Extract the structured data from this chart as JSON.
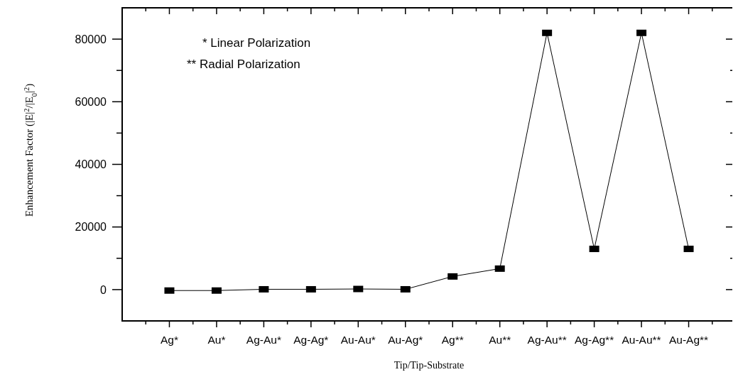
{
  "chart_data": {
    "type": "line",
    "xlabel": "Tip/Tip-Substrate",
    "ylabel": "Enhancement Factor (|E|$^{2}$/|E$_{0}$|$^{2}$)",
    "categories": [
      "Ag*",
      "Au*",
      "Ag-Au*",
      "Ag-Ag*",
      "Au-Au*",
      "Au-Ag*",
      "Ag**",
      "Au**",
      "Ag-Au**",
      "Ag-Ag**",
      "Au-Au**",
      "Au-Ag**"
    ],
    "series": [
      {
        "color": "#000000",
        "values": [
          -300,
          -300,
          100,
          100,
          200,
          100,
          4200,
          6700,
          82000,
          13000,
          82000,
          13000
        ]
      }
    ],
    "ylim": [
      -10000,
      90000
    ],
    "yticks": [
      0,
      {
        "value": 10000,
        "label": null
      },
      20000,
      {
        "value": 30000,
        "label": null
      },
      40000,
      {
        "value": 50000,
        "label": null
      },
      60000,
      {
        "value": 70000,
        "label": null
      },
      80000
    ],
    "marker": "square",
    "line_style": "solid",
    "grid": false,
    "annotations": [
      "* Linear Polarization",
      "** Radial Polarization"
    ]
  }
}
